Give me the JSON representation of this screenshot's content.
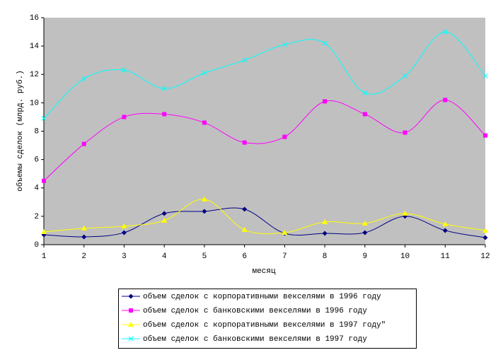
{
  "chart_data": {
    "type": "line",
    "x_label": "месяц",
    "y_label": "объемы сделок (млрд. руб.)",
    "x": [
      1,
      2,
      3,
      4,
      5,
      6,
      7,
      8,
      9,
      10,
      11,
      12
    ],
    "xlim": [
      1,
      12
    ],
    "xticks": [
      1,
      2,
      3,
      4,
      5,
      6,
      7,
      8,
      9,
      10,
      11,
      12
    ],
    "ylim": [
      0,
      16
    ],
    "yticks": [
      0,
      2,
      4,
      6,
      8,
      10,
      12,
      14,
      16
    ],
    "smooth": true,
    "plot_background": "#c0c0c0",
    "series": [
      {
        "name": "объем сделок с корпоративными векселями в 1996 году",
        "color": "#000080",
        "marker": "diamond",
        "values": [
          0.7,
          0.55,
          0.85,
          2.2,
          2.35,
          2.5,
          0.8,
          0.8,
          0.85,
          2.0,
          1.0,
          0.5
        ]
      },
      {
        "name": "объем сделок с банковскими векселями в 1996 году",
        "color": "#ff00ff",
        "marker": "square",
        "values": [
          4.5,
          7.1,
          9.0,
          9.2,
          8.6,
          7.2,
          7.6,
          10.1,
          9.2,
          7.9,
          10.2,
          7.7
        ]
      },
      {
        "name": "объем сделок с корпоративными векселями в 1997 году\"",
        "color": "#ffff00",
        "marker": "triangle",
        "values": [
          0.9,
          1.15,
          1.3,
          1.7,
          3.2,
          1.05,
          0.85,
          1.6,
          1.5,
          2.2,
          1.45,
          1.0
        ]
      },
      {
        "name": "объем сделок с банковскими векселями в 1997 году",
        "color": "#00ffff",
        "marker": "x",
        "values": [
          8.9,
          11.7,
          12.3,
          11.0,
          12.1,
          13.0,
          14.1,
          14.2,
          10.7,
          11.9,
          15.0,
          11.9
        ]
      }
    ]
  }
}
